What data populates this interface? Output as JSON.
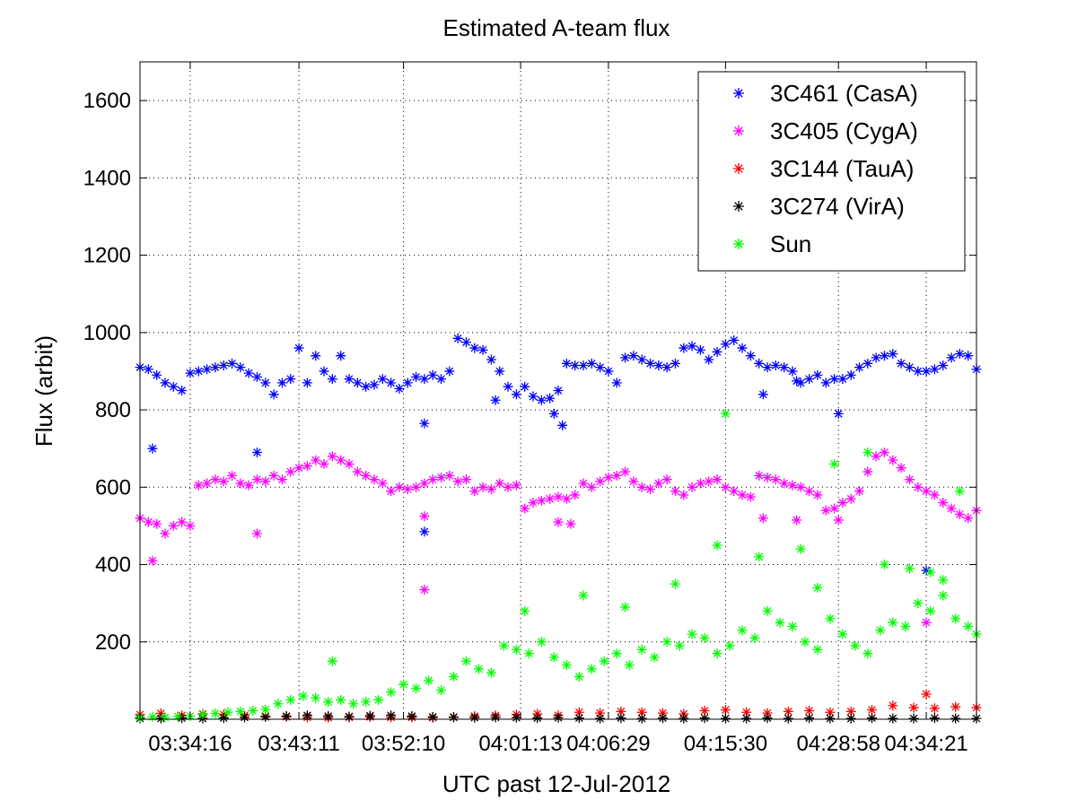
{
  "chart_data": {
    "type": "scatter",
    "title": "Estimated A-team flux",
    "xlabel": "UTC past 12-Jul-2012",
    "ylabel": "Flux (arbit)",
    "xlim": [
      0,
      1000
    ],
    "ylim": [
      0,
      1700
    ],
    "grid": true,
    "legend_position": "top-right",
    "marker": "*",
    "xtick_values": [
      60,
      190,
      315,
      455,
      560,
      700,
      835,
      940
    ],
    "xtick_labels": [
      "03:34:16",
      "03:43:11",
      "03:52:10",
      "04:01:13",
      "04:06:29",
      "04:15:30",
      "04:28:58",
      "04:34:21"
    ],
    "yticks": [
      200,
      400,
      600,
      800,
      1000,
      1200,
      1400,
      1600
    ],
    "series": [
      {
        "name": "3C461 (CasA)",
        "color": "#0000ff",
        "x": [
          0,
          10,
          20,
          30,
          40,
          50,
          60,
          70,
          80,
          90,
          100,
          110,
          120,
          130,
          140,
          150,
          160,
          170,
          180,
          190,
          200,
          210,
          220,
          230,
          240,
          250,
          260,
          270,
          280,
          290,
          300,
          310,
          320,
          330,
          340,
          350,
          360,
          370,
          380,
          390,
          400,
          410,
          420,
          430,
          440,
          450,
          460,
          470,
          480,
          490,
          500,
          510,
          520,
          530,
          540,
          550,
          560,
          570,
          580,
          590,
          600,
          610,
          620,
          630,
          640,
          650,
          660,
          670,
          680,
          690,
          700,
          710,
          720,
          730,
          740,
          750,
          760,
          770,
          780,
          790,
          800,
          810,
          820,
          830,
          840,
          850,
          860,
          870,
          880,
          890,
          900,
          910,
          920,
          930,
          940,
          950,
          960,
          970,
          980,
          990,
          1000,
          15,
          140,
          340,
          340,
          425,
          495,
          505,
          745,
          785,
          835,
          940
        ],
        "y": [
          910,
          905,
          890,
          870,
          860,
          850,
          895,
          900,
          905,
          910,
          915,
          920,
          910,
          895,
          885,
          870,
          840,
          870,
          880,
          960,
          870,
          940,
          900,
          880,
          940,
          880,
          870,
          860,
          865,
          880,
          870,
          855,
          870,
          885,
          880,
          890,
          880,
          900,
          985,
          975,
          960,
          955,
          930,
          900,
          860,
          840,
          860,
          835,
          825,
          830,
          850,
          920,
          915,
          915,
          920,
          910,
          900,
          870,
          935,
          940,
          930,
          920,
          915,
          910,
          920,
          960,
          965,
          955,
          930,
          950,
          970,
          980,
          960,
          940,
          920,
          910,
          915,
          910,
          900,
          870,
          880,
          890,
          870,
          880,
          880,
          890,
          910,
          920,
          935,
          940,
          945,
          920,
          910,
          900,
          900,
          905,
          915,
          935,
          945,
          940,
          905,
          700,
          690,
          765,
          485,
          825,
          790,
          760,
          840,
          875,
          790,
          385
        ]
      },
      {
        "name": "3C405 (CygA)",
        "color": "#ff00ff",
        "x": [
          0,
          10,
          20,
          30,
          40,
          50,
          60,
          70,
          80,
          90,
          100,
          110,
          120,
          130,
          140,
          150,
          160,
          170,
          180,
          190,
          200,
          210,
          220,
          230,
          240,
          250,
          260,
          270,
          280,
          290,
          300,
          310,
          320,
          330,
          340,
          350,
          360,
          370,
          380,
          390,
          400,
          410,
          420,
          430,
          440,
          450,
          460,
          470,
          480,
          490,
          500,
          510,
          520,
          530,
          540,
          550,
          560,
          570,
          580,
          590,
          600,
          610,
          620,
          630,
          640,
          650,
          660,
          670,
          680,
          690,
          700,
          710,
          720,
          730,
          740,
          750,
          760,
          770,
          780,
          790,
          800,
          810,
          820,
          830,
          840,
          850,
          860,
          870,
          880,
          890,
          900,
          910,
          920,
          930,
          940,
          950,
          960,
          970,
          980,
          990,
          1000,
          15,
          140,
          340,
          340,
          500,
          515,
          745,
          785,
          835,
          940
        ],
        "y": [
          520,
          510,
          505,
          480,
          500,
          510,
          500,
          605,
          610,
          620,
          615,
          630,
          610,
          605,
          620,
          615,
          630,
          620,
          640,
          650,
          655,
          670,
          660,
          680,
          670,
          660,
          640,
          630,
          620,
          610,
          590,
          600,
          595,
          600,
          610,
          620,
          625,
          630,
          615,
          620,
          590,
          600,
          595,
          610,
          600,
          605,
          545,
          560,
          565,
          570,
          575,
          570,
          580,
          610,
          600,
          615,
          625,
          630,
          640,
          615,
          600,
          595,
          610,
          620,
          590,
          580,
          600,
          610,
          615,
          620,
          600,
          590,
          580,
          575,
          630,
          625,
          620,
          610,
          605,
          600,
          590,
          580,
          540,
          545,
          560,
          570,
          590,
          640,
          680,
          690,
          670,
          650,
          620,
          600,
          590,
          580,
          560,
          545,
          530,
          520,
          540,
          410,
          480,
          525,
          335,
          510,
          505,
          520,
          515,
          515,
          250
        ]
      },
      {
        "name": "3C144 (TauA)",
        "color": "#ff0000",
        "x": [
          0,
          25,
          50,
          75,
          100,
          125,
          150,
          175,
          200,
          225,
          250,
          275,
          300,
          325,
          350,
          375,
          400,
          425,
          450,
          475,
          500,
          525,
          550,
          575,
          600,
          625,
          650,
          675,
          700,
          725,
          750,
          775,
          800,
          825,
          850,
          875,
          900,
          925,
          950,
          975,
          1000,
          940
        ],
        "y": [
          12,
          15,
          10,
          14,
          12,
          10,
          8,
          6,
          5,
          4,
          5,
          6,
          5,
          5,
          4,
          6,
          8,
          10,
          12,
          14,
          10,
          18,
          16,
          20,
          18,
          16,
          14,
          22,
          24,
          18,
          16,
          20,
          22,
          18,
          20,
          24,
          35,
          30,
          28,
          32,
          30,
          65
        ]
      },
      {
        "name": "3C274 (VirA)",
        "color": "#000000",
        "x": [
          0,
          25,
          50,
          75,
          100,
          125,
          150,
          175,
          200,
          225,
          250,
          275,
          300,
          325,
          350,
          375,
          400,
          425,
          450,
          475,
          500,
          525,
          550,
          575,
          600,
          625,
          650,
          675,
          700,
          725,
          750,
          775,
          800,
          825,
          850,
          875,
          900,
          925,
          950,
          975,
          1000
        ],
        "y": [
          2,
          2,
          3,
          2,
          3,
          5,
          6,
          8,
          10,
          8,
          7,
          9,
          10,
          8,
          6,
          5,
          4,
          5,
          4,
          3,
          4,
          3,
          2,
          3,
          2,
          3,
          2,
          3,
          2,
          2,
          3,
          2,
          3,
          2,
          2,
          3,
          2,
          2,
          3,
          2,
          2
        ]
      },
      {
        "name": "Sun",
        "color": "#00ff00",
        "x": [
          0,
          15,
          30,
          45,
          60,
          75,
          90,
          105,
          120,
          135,
          150,
          165,
          180,
          195,
          210,
          225,
          240,
          255,
          270,
          285,
          300,
          315,
          330,
          345,
          360,
          375,
          390,
          405,
          420,
          435,
          450,
          465,
          480,
          495,
          510,
          525,
          540,
          555,
          570,
          585,
          600,
          615,
          630,
          645,
          660,
          675,
          690,
          705,
          720,
          735,
          750,
          765,
          780,
          795,
          810,
          825,
          840,
          855,
          870,
          885,
          900,
          915,
          930,
          945,
          960,
          975,
          990,
          1000,
          230,
          460,
          530,
          580,
          640,
          690,
          700,
          740,
          790,
          810,
          830,
          870,
          890,
          920,
          945,
          960,
          980
        ],
        "y": [
          5,
          6,
          5,
          7,
          8,
          12,
          15,
          18,
          20,
          22,
          25,
          40,
          50,
          60,
          55,
          45,
          50,
          40,
          45,
          50,
          70,
          90,
          80,
          100,
          75,
          110,
          150,
          130,
          120,
          190,
          180,
          170,
          200,
          160,
          140,
          110,
          130,
          150,
          170,
          140,
          180,
          160,
          200,
          190,
          220,
          210,
          170,
          190,
          230,
          210,
          280,
          250,
          240,
          200,
          180,
          260,
          220,
          190,
          170,
          230,
          250,
          240,
          300,
          280,
          320,
          260,
          240,
          220,
          150,
          280,
          320,
          290,
          350,
          450,
          790,
          420,
          440,
          340,
          660,
          690,
          400,
          390,
          380,
          360,
          590
        ]
      }
    ]
  }
}
